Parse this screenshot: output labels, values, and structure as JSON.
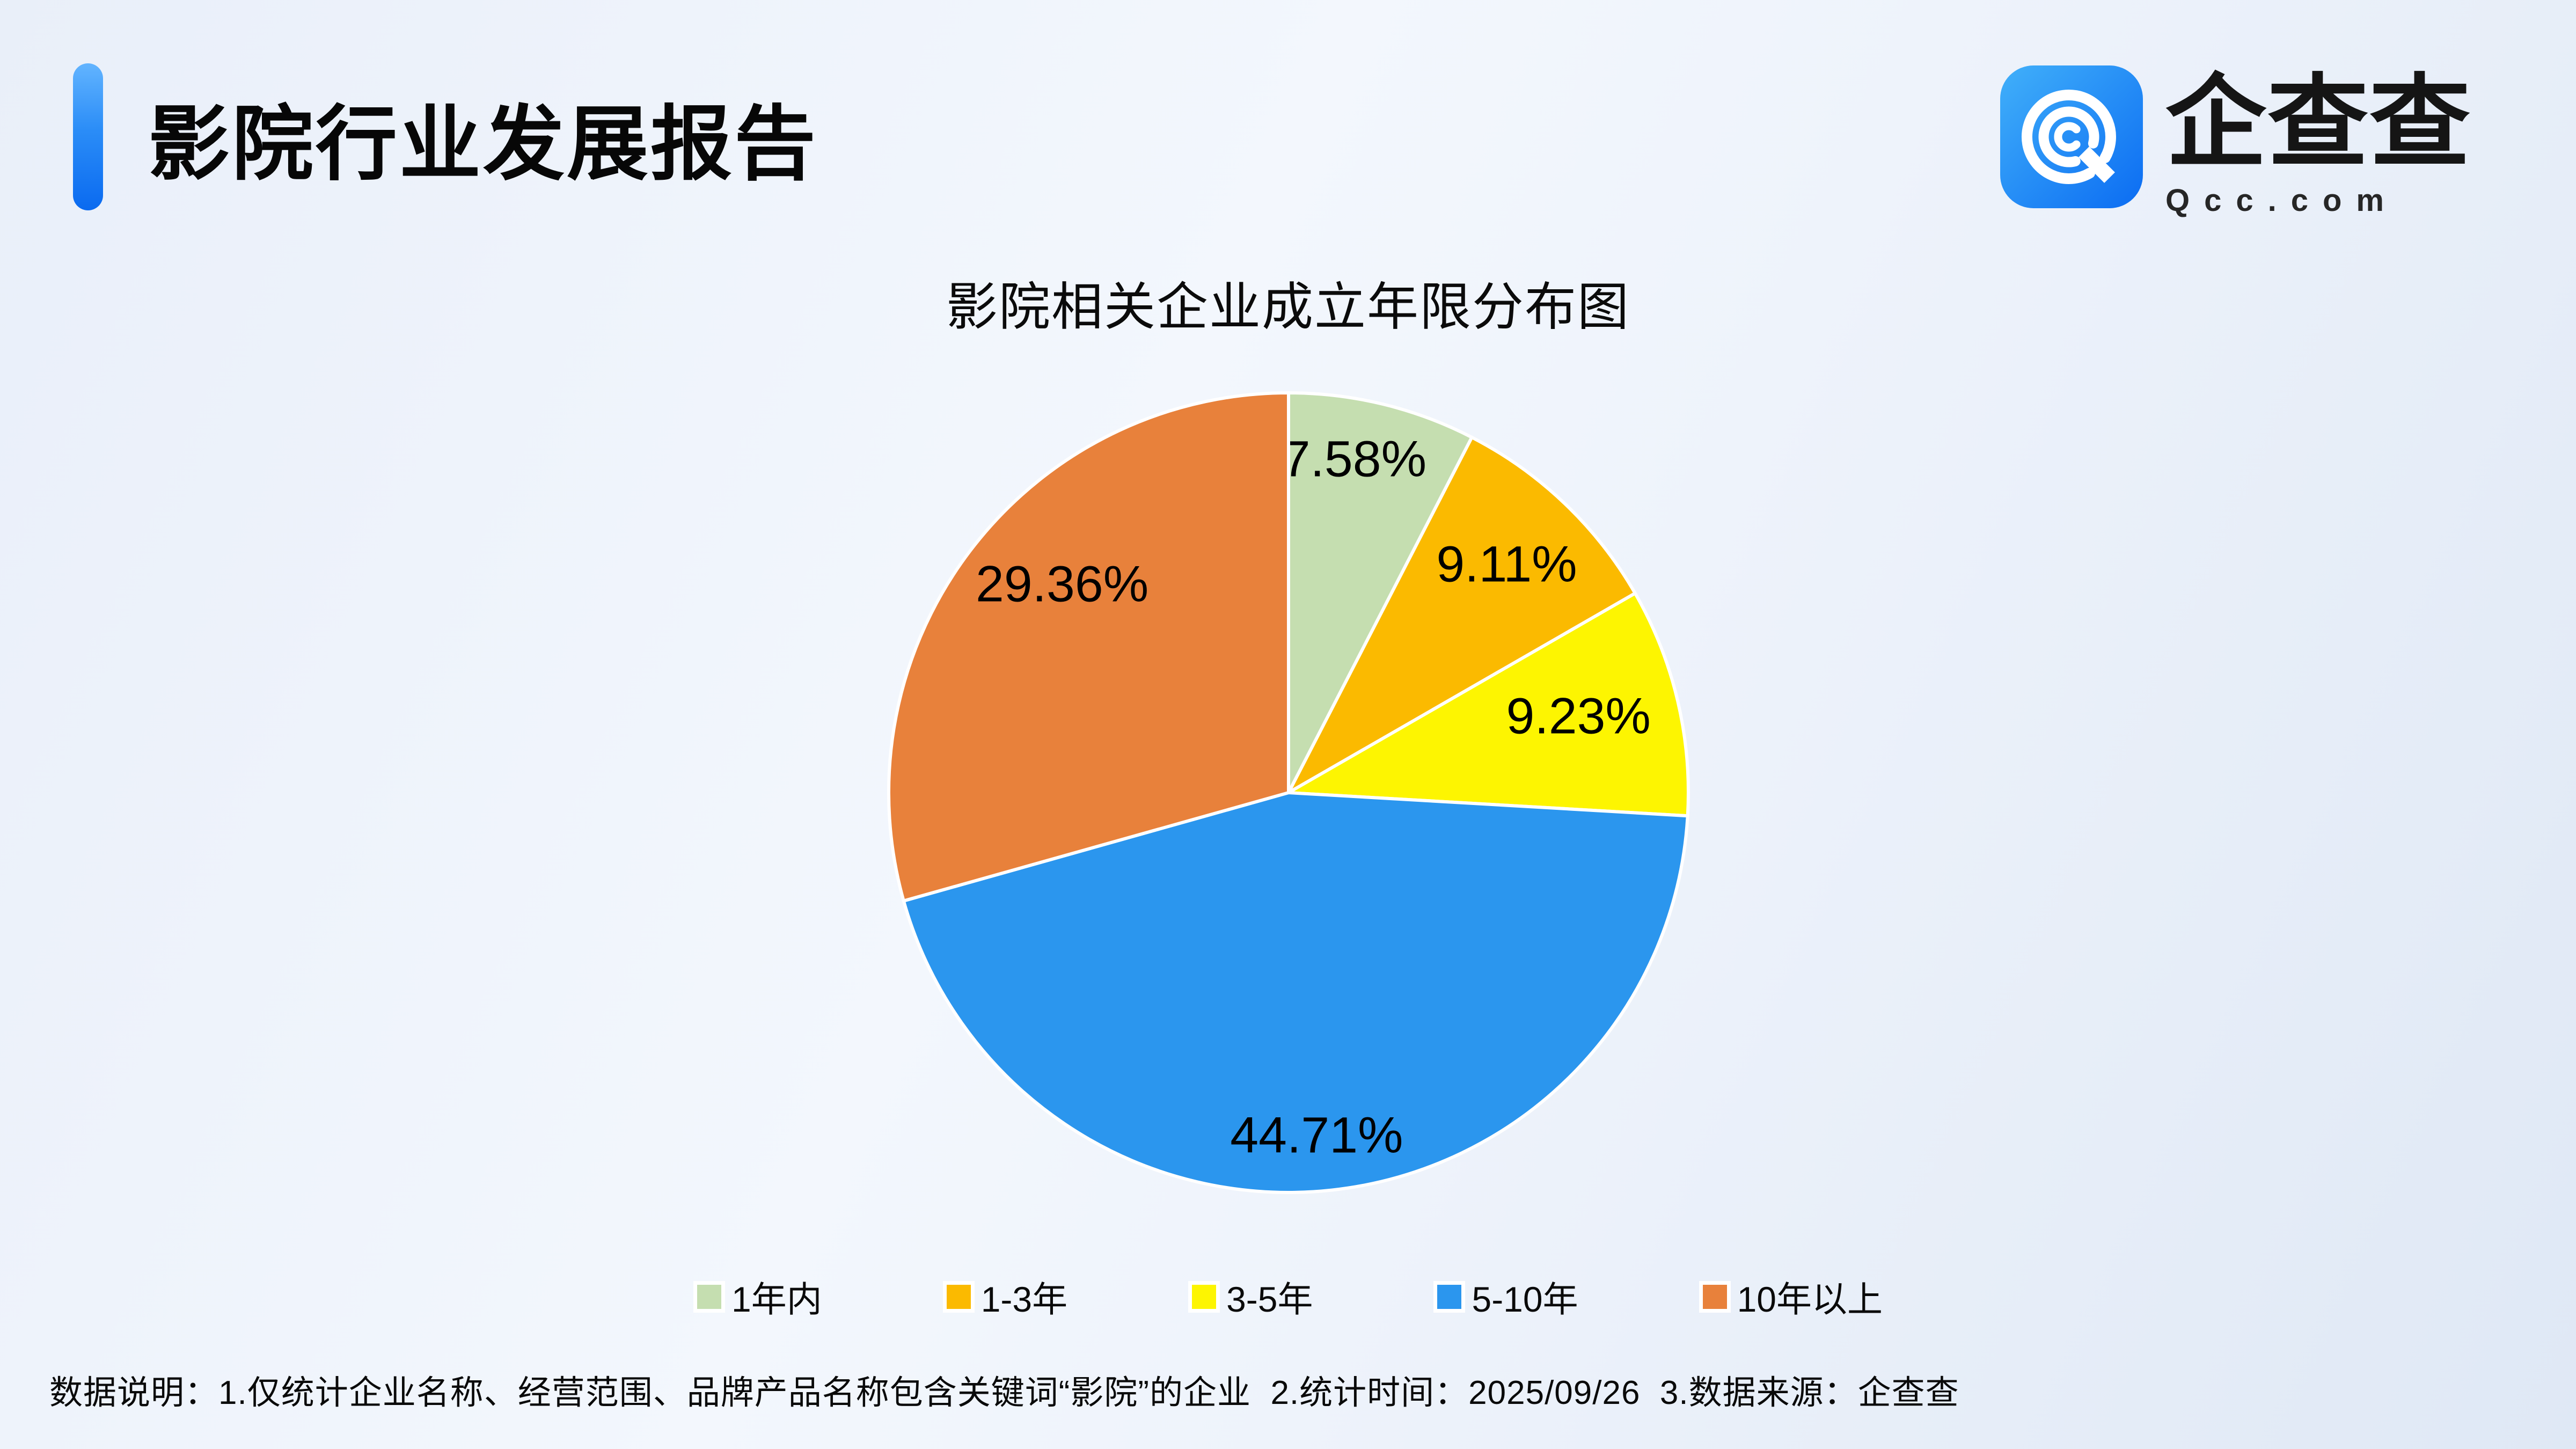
{
  "page": {
    "title": "影院行业发展报告",
    "logo": {
      "name": "企查查",
      "domain": "Qcc.com"
    },
    "footer": "数据说明：1.仅统计企业名称、经营范围、品牌产品名称包含关键词“影院”的企业  2.统计时间：2025/09/26  3.数据来源：企查查"
  },
  "chart_data": {
    "type": "pie",
    "title": "影院相关企业成立年限分布图",
    "categories": [
      "1年内",
      "1-3年",
      "3-5年",
      "5-10年",
      "10年以上"
    ],
    "values": [
      7.58,
      9.11,
      9.23,
      44.71,
      29.36
    ],
    "labels": [
      "7.58%",
      "9.11%",
      "9.23%",
      "44.71%",
      "29.36%"
    ],
    "colors": [
      "#c5deb0",
      "#fbba00",
      "#fdf501",
      "#2b96ee",
      "#e8813b"
    ],
    "slice_border_color": "#ffffff",
    "start_angle_deg": 0,
    "direction": "clockwise",
    "label_radius_frac": [
      0.85,
      0.79,
      0.75,
      0.86,
      0.77
    ],
    "label_angle_offset_deg": [
      -2.5,
      0,
      -1.5,
      1.5,
      5.5
    ],
    "legend_position": "bottom",
    "grid": false
  }
}
